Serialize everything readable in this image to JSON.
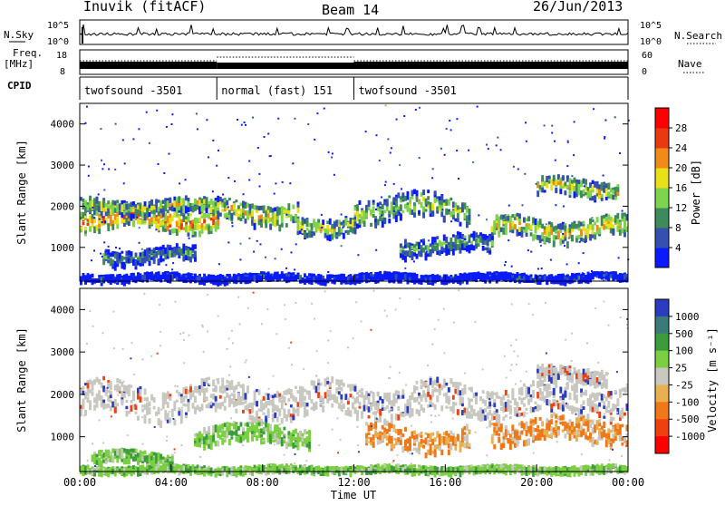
{
  "header": {
    "station": "Inuvik (fitACF)",
    "beam": "Beam 14",
    "date": "26/Jun/2013"
  },
  "strip_labels": {
    "nsky": "N.Sky",
    "nsky_top": "10^5",
    "nsky_bottom": "10^0",
    "nsearch": "N.Search",
    "nsearch_top": "10^5",
    "nsearch_bottom": "10^0",
    "freq": "Freq.",
    "freq_unit": "[MHz]",
    "freq_top": "18",
    "freq_bottom": "8",
    "nave": "Nave",
    "nave_top": "60",
    "nave_bottom": "0",
    "cpid": "CPID"
  },
  "cpid_segments": [
    {
      "label": "twofsound -3501",
      "start_h": 0,
      "end_h": 6
    },
    {
      "label": "normal (fast) 151",
      "start_h": 6,
      "end_h": 12
    },
    {
      "label": "twofsound -3501",
      "start_h": 12,
      "end_h": 24
    }
  ],
  "chart_data": [
    {
      "type": "heatmap",
      "quantity": "Power",
      "ylabel": "Slant Range [km]",
      "yticks": [
        1000,
        2000,
        3000,
        4000
      ],
      "ylim": [
        180,
        4500
      ],
      "xlim_hours": [
        0,
        24
      ],
      "colorbar_label": "Power [dB]",
      "colorbar_ticks": [
        "4",
        "8",
        "12",
        "16",
        "20",
        "24",
        "28"
      ],
      "colorbar_colors": [
        "#0a1aff",
        "#3650b0",
        "#3f8a5a",
        "#7ed34f",
        "#e8e018",
        "#f08a18",
        "#e83a10",
        "#ff0000"
      ],
      "bands": [
        {
          "h0": 0,
          "h1": 6,
          "r": 1750,
          "w": 320,
          "level": 0.72
        },
        {
          "h0": 0,
          "h1": 6,
          "r": 2050,
          "w": 200,
          "level": 0.55
        },
        {
          "h0": 1,
          "h1": 5,
          "r": 850,
          "w": 220,
          "level": 0.35
        },
        {
          "h0": 6,
          "h1": 9.5,
          "r": 1900,
          "w": 300,
          "level": 0.6
        },
        {
          "h0": 9.5,
          "h1": 12,
          "r": 1600,
          "w": 260,
          "level": 0.55
        },
        {
          "h0": 12,
          "h1": 17,
          "r": 2000,
          "w": 360,
          "level": 0.5
        },
        {
          "h0": 14,
          "h1": 18,
          "r": 1100,
          "w": 260,
          "level": 0.4
        },
        {
          "h0": 18,
          "h1": 24,
          "r": 1500,
          "w": 300,
          "level": 0.6
        },
        {
          "h0": 20,
          "h1": 23.5,
          "r": 2500,
          "w": 250,
          "level": 0.55
        },
        {
          "h0": 0,
          "h1": 24,
          "r": 320,
          "w": 90,
          "level": 0.15
        }
      ]
    },
    {
      "type": "heatmap",
      "quantity": "Velocity",
      "ylabel": "Slant Range [km]",
      "yticks": [
        1000,
        2000,
        3000,
        4000
      ],
      "ylim": [
        180,
        4500
      ],
      "xlim_hours": [
        0,
        24
      ],
      "xticks": [
        "00:00",
        "04:00",
        "08:00",
        "12:00",
        "16:00",
        "20:00",
        "00:00"
      ],
      "xlabel": "Time UT",
      "colorbar_label": "Velocity [m s⁻¹]",
      "colorbar_ticks": [
        "1000",
        "500",
        "100",
        "25",
        "-25",
        "-100",
        "-500",
        "-1000"
      ],
      "colorbar_colors": [
        "#2a3cc0",
        "#3a7a78",
        "#3c9c3c",
        "#7ad040",
        "#c8c8c0",
        "#e8b050",
        "#f07818",
        "#f04010",
        "#ff0000"
      ],
      "bands": [
        {
          "h0": 0,
          "h1": 12,
          "r": 1900,
          "w": 450,
          "level": "gray"
        },
        {
          "h0": 12,
          "h1": 24,
          "r": 1900,
          "w": 450,
          "level": "gray"
        },
        {
          "h0": 5,
          "h1": 10,
          "r": 1100,
          "w": 260,
          "level": "green"
        },
        {
          "h0": 0.5,
          "h1": 4,
          "r": 550,
          "w": 160,
          "level": "green"
        },
        {
          "h0": 12.5,
          "h1": 17,
          "r": 1000,
          "w": 320,
          "level": "orange"
        },
        {
          "h0": 18,
          "h1": 24,
          "r": 1200,
          "w": 340,
          "level": "orange"
        },
        {
          "h0": 0,
          "h1": 24,
          "r": 280,
          "w": 80,
          "level": "green"
        },
        {
          "h0": 20,
          "h1": 23,
          "r": 2500,
          "w": 200,
          "level": "gray"
        }
      ]
    }
  ]
}
